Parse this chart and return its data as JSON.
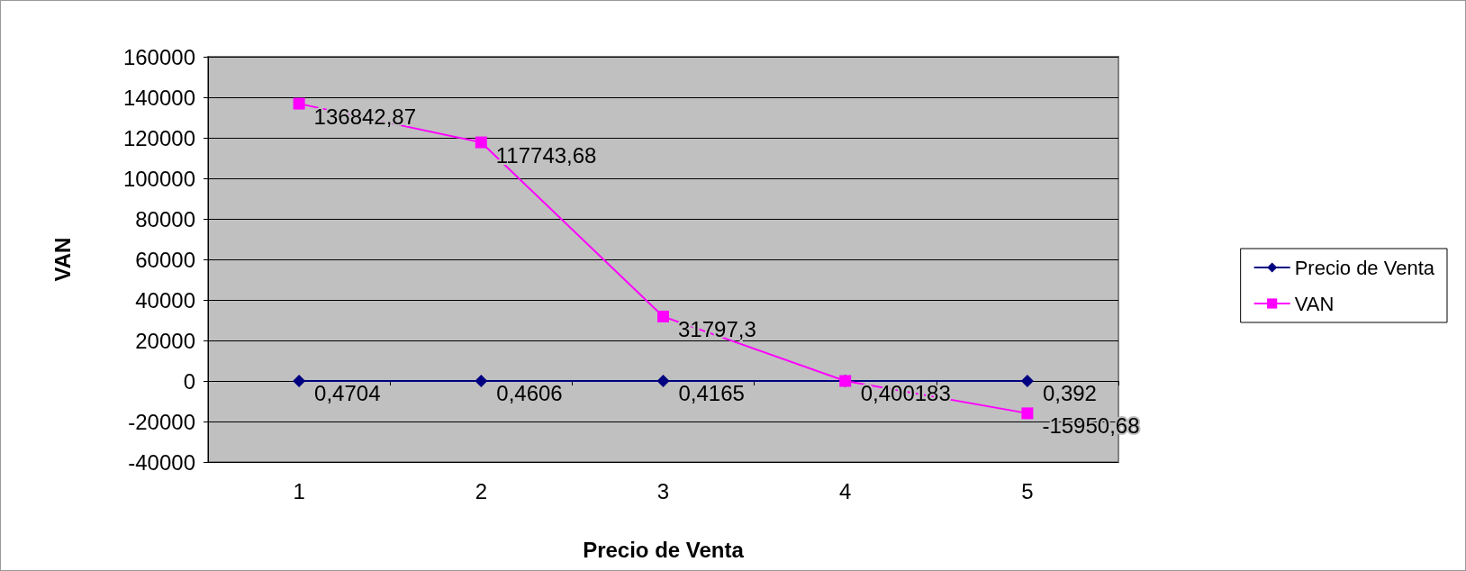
{
  "chart_data": {
    "type": "line",
    "xlabel": "Precio de Venta",
    "ylabel": "VAN",
    "categories": [
      "1",
      "2",
      "3",
      "4",
      "5"
    ],
    "series": [
      {
        "name": "Precio de Venta",
        "color": "#000080",
        "marker": "diamond",
        "values": [
          0.4704,
          0.4606,
          0.4165,
          0.400183,
          0.392
        ],
        "value_labels": [
          "0,4704",
          "0,4606",
          "0,4165",
          "0,400183",
          "0,392"
        ]
      },
      {
        "name": "VAN",
        "color": "#ff00ff",
        "marker": "square",
        "values": [
          136842.87,
          117743.68,
          31797.3,
          0,
          -15950.68
        ],
        "value_labels": [
          "136842,87",
          "117743,68",
          "31797,3",
          null,
          "-15950,68"
        ]
      }
    ],
    "ylim": [
      -40000,
      160000
    ],
    "yticks": [
      -40000,
      -20000,
      0,
      20000,
      40000,
      60000,
      80000,
      100000,
      120000,
      140000,
      160000
    ],
    "grid": "y",
    "legend": "right"
  }
}
